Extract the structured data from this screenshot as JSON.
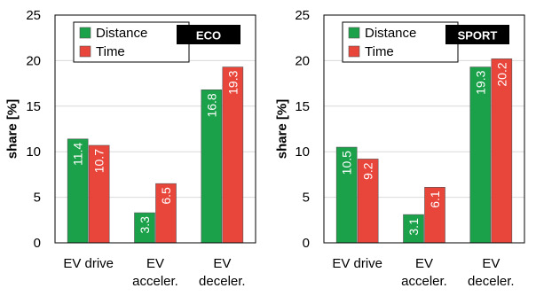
{
  "colors": {
    "distance": "#1aa14a",
    "time": "#e8453b",
    "bar_edge": "#555555",
    "badge_bg": "#000000"
  },
  "chart_data": [
    {
      "type": "bar",
      "badge": "ECO",
      "categories": [
        [
          "EV drive"
        ],
        [
          "EV",
          "acceler."
        ],
        [
          "EV",
          "deceler."
        ]
      ],
      "ylabel": "share [%]",
      "ylim": [
        0,
        25
      ],
      "yticks": [
        0,
        5,
        10,
        15,
        20,
        25
      ],
      "grid": true,
      "legend_position": "top-left",
      "series": [
        {
          "name": "Distance",
          "values": [
            11.4,
            3.3,
            16.8
          ],
          "labels": [
            "11.4",
            "3.3",
            "16.8"
          ]
        },
        {
          "name": "Time",
          "values": [
            10.7,
            6.5,
            19.3
          ],
          "labels": [
            "10.7",
            "6.5",
            "19.3"
          ]
        }
      ]
    },
    {
      "type": "bar",
      "badge": "SPORT",
      "categories": [
        [
          "EV drive"
        ],
        [
          "EV",
          "acceler."
        ],
        [
          "EV",
          "deceler."
        ]
      ],
      "ylabel": "share [%]",
      "ylim": [
        0,
        25
      ],
      "yticks": [
        0,
        5,
        10,
        15,
        20,
        25
      ],
      "grid": true,
      "legend_position": "top-left",
      "series": [
        {
          "name": "Distance",
          "values": [
            10.5,
            3.1,
            19.3
          ],
          "labels": [
            "10.5",
            "3.1",
            "19.3"
          ]
        },
        {
          "name": "Time",
          "values": [
            9.2,
            6.1,
            20.2
          ],
          "labels": [
            "9.2",
            "6.1",
            "20.2"
          ]
        }
      ]
    }
  ]
}
